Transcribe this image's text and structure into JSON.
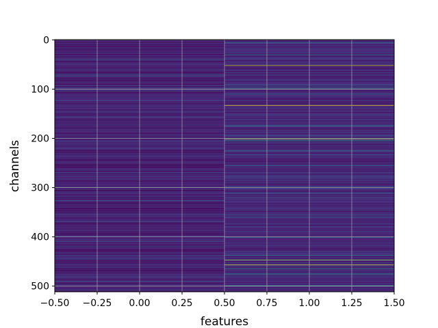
{
  "chart_data": {
    "type": "heatmap",
    "title": "",
    "xlabel": "features",
    "ylabel": "channels",
    "xlim": [
      -0.5,
      1.5
    ],
    "ylim": [
      511.5,
      -0.5
    ],
    "grid": true,
    "colormap": "viridis",
    "n_channels": 512,
    "n_features": 2,
    "x_ticks": [
      {
        "value": -0.5,
        "label": "−0.50"
      },
      {
        "value": -0.25,
        "label": "−0.25"
      },
      {
        "value": 0.0,
        "label": "0.00"
      },
      {
        "value": 0.25,
        "label": "0.25"
      },
      {
        "value": 0.5,
        "label": "0.50"
      },
      {
        "value": 0.75,
        "label": "0.75"
      },
      {
        "value": 1.0,
        "label": "1.00"
      },
      {
        "value": 1.25,
        "label": "1.25"
      },
      {
        "value": 1.5,
        "label": "1.50"
      }
    ],
    "y_ticks": [
      {
        "value": 0,
        "label": "0"
      },
      {
        "value": 100,
        "label": "100"
      },
      {
        "value": 200,
        "label": "200"
      },
      {
        "value": 300,
        "label": "300"
      },
      {
        "value": 400,
        "label": "400"
      },
      {
        "value": 500,
        "label": "500"
      }
    ],
    "columns": [
      {
        "feature": 0,
        "background_level": 0.12,
        "highlight_rows": [
          {
            "channel": 40,
            "level": 0.4
          },
          {
            "channel": 100,
            "level": 0.45
          },
          {
            "channel": 220,
            "level": 0.3
          },
          {
            "channel": 300,
            "level": 0.35
          },
          {
            "channel": 355,
            "level": 0.3
          },
          {
            "channel": 445,
            "level": 0.35
          },
          {
            "channel": 490,
            "level": 0.4
          }
        ]
      },
      {
        "feature": 1,
        "background_level": 0.14,
        "highlight_rows": [
          {
            "channel": 5,
            "level": 0.45
          },
          {
            "channel": 30,
            "level": 0.55
          },
          {
            "channel": 52,
            "level": 0.95
          },
          {
            "channel": 98,
            "level": 0.55
          },
          {
            "channel": 110,
            "level": 0.45
          },
          {
            "channel": 133,
            "level": 1.0
          },
          {
            "channel": 175,
            "level": 0.5
          },
          {
            "channel": 201,
            "level": 0.9
          },
          {
            "channel": 205,
            "level": 0.7
          },
          {
            "channel": 225,
            "level": 0.5
          },
          {
            "channel": 255,
            "level": 0.4
          },
          {
            "channel": 298,
            "level": 0.45
          },
          {
            "channel": 320,
            "level": 0.35
          },
          {
            "channel": 360,
            "level": 0.4
          },
          {
            "channel": 437,
            "level": 0.55
          },
          {
            "channel": 447,
            "level": 0.9
          },
          {
            "channel": 457,
            "level": 0.95
          },
          {
            "channel": 465,
            "level": 0.6
          },
          {
            "channel": 475,
            "level": 0.55
          },
          {
            "channel": 499,
            "level": 0.6
          }
        ]
      }
    ]
  }
}
